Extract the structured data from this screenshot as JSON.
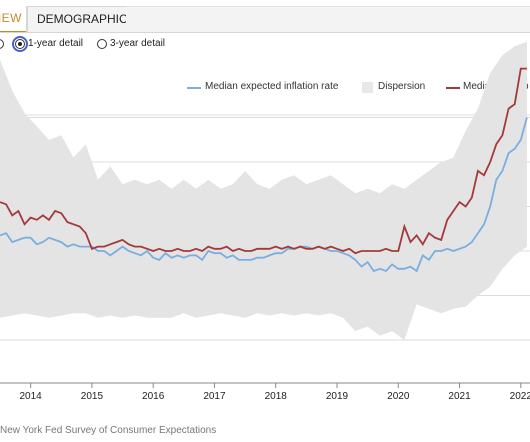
{
  "tabs": [
    {
      "label": "NEW",
      "active": true
    },
    {
      "label": "DEMOGRAPHICS",
      "active": false
    }
  ],
  "detail_options": {
    "selected": "1-year detail",
    "options": [
      "1-year detail",
      "3-year detail"
    ]
  },
  "legend": {
    "median": "Median expected inflation rate",
    "dispersion": "Dispersion",
    "point": "Median point p"
  },
  "source_text": "New York Fed Survey of Consumer Expectations",
  "colors": {
    "median": "#7aaee0",
    "point": "#a33a3a",
    "dispersion": "#e4e4e4",
    "tab_accent": "#c08a2e"
  },
  "chart_data": {
    "type": "line",
    "x_ticks": [
      "2014",
      "2015",
      "2016",
      "2017",
      "2018",
      "2019",
      "2020",
      "2021",
      "2022"
    ],
    "x_range": [
      2013.5,
      2022.15
    ],
    "y_range": [
      0,
      8
    ],
    "grid": true,
    "legend_position": "top-right",
    "series": [
      {
        "name": "Median expected inflation rate",
        "x": [
          2013.5,
          2013.6,
          2013.7,
          2013.8,
          2013.9,
          2014.0,
          2014.1,
          2014.2,
          2014.3,
          2014.4,
          2014.5,
          2014.6,
          2014.7,
          2014.8,
          2014.9,
          2015.0,
          2015.1,
          2015.2,
          2015.3,
          2015.4,
          2015.5,
          2015.6,
          2015.7,
          2015.8,
          2015.9,
          2016.0,
          2016.1,
          2016.2,
          2016.3,
          2016.4,
          2016.5,
          2016.6,
          2016.7,
          2016.8,
          2016.9,
          2017.0,
          2017.1,
          2017.2,
          2017.3,
          2017.4,
          2017.5,
          2017.6,
          2017.7,
          2017.8,
          2017.9,
          2018.0,
          2018.1,
          2018.2,
          2018.3,
          2018.4,
          2018.5,
          2018.6,
          2018.7,
          2018.8,
          2018.9,
          2019.0,
          2019.1,
          2019.2,
          2019.3,
          2019.4,
          2019.5,
          2019.6,
          2019.7,
          2019.8,
          2019.9,
          2020.0,
          2020.1,
          2020.2,
          2020.3,
          2020.4,
          2020.5,
          2020.6,
          2020.7,
          2020.8,
          2020.9,
          2021.0,
          2021.1,
          2021.2,
          2021.3,
          2021.4,
          2021.5,
          2021.6,
          2021.7,
          2021.8,
          2021.9,
          2022.0,
          2022.1
        ],
        "y": [
          3.35,
          3.4,
          3.2,
          3.25,
          3.3,
          3.3,
          3.15,
          3.2,
          3.3,
          3.25,
          3.2,
          3.1,
          3.15,
          3.1,
          3.1,
          3.1,
          3.0,
          3.0,
          2.9,
          3.0,
          3.1,
          3.0,
          2.95,
          2.9,
          3.0,
          2.85,
          2.8,
          2.95,
          2.85,
          2.9,
          2.85,
          2.9,
          2.9,
          2.8,
          3.0,
          2.95,
          2.95,
          2.85,
          2.9,
          2.8,
          2.8,
          2.8,
          2.85,
          2.85,
          2.9,
          2.95,
          2.95,
          3.05,
          3.05,
          3.1,
          3.1,
          3.05,
          3.1,
          3.05,
          3.0,
          3.0,
          2.95,
          2.9,
          2.8,
          2.65,
          2.75,
          2.55,
          2.6,
          2.55,
          2.7,
          2.6,
          2.6,
          2.65,
          2.55,
          2.9,
          2.8,
          3.0,
          3.0,
          3.05,
          3.0,
          3.05,
          3.1,
          3.2,
          3.4,
          3.6,
          4.0,
          4.6,
          4.8,
          5.2,
          5.3,
          5.5,
          6.0
        ]
      },
      {
        "name": "Median point p",
        "x": [
          2013.5,
          2013.6,
          2013.7,
          2013.8,
          2013.9,
          2014.0,
          2014.1,
          2014.2,
          2014.3,
          2014.4,
          2014.5,
          2014.6,
          2014.7,
          2014.8,
          2014.9,
          2015.0,
          2015.1,
          2015.2,
          2015.3,
          2015.4,
          2015.5,
          2015.6,
          2015.7,
          2015.8,
          2015.9,
          2016.0,
          2016.1,
          2016.2,
          2016.3,
          2016.4,
          2016.5,
          2016.6,
          2016.7,
          2016.8,
          2016.9,
          2017.0,
          2017.1,
          2017.2,
          2017.3,
          2017.4,
          2017.5,
          2017.6,
          2017.7,
          2017.8,
          2017.9,
          2018.0,
          2018.1,
          2018.2,
          2018.3,
          2018.4,
          2018.5,
          2018.6,
          2018.7,
          2018.8,
          2018.9,
          2019.0,
          2019.1,
          2019.2,
          2019.3,
          2019.4,
          2019.5,
          2019.6,
          2019.7,
          2019.8,
          2019.9,
          2020.0,
          2020.1,
          2020.2,
          2020.3,
          2020.4,
          2020.5,
          2020.6,
          2020.7,
          2020.8,
          2020.9,
          2021.0,
          2021.1,
          2021.2,
          2021.3,
          2021.4,
          2021.5,
          2021.6,
          2021.7,
          2021.8,
          2021.9,
          2022.0,
          2022.1
        ],
        "y": [
          4.1,
          4.05,
          3.8,
          3.9,
          3.6,
          3.75,
          3.7,
          3.8,
          3.7,
          3.9,
          3.85,
          3.65,
          3.6,
          3.55,
          3.4,
          3.05,
          3.1,
          3.1,
          3.15,
          3.2,
          3.25,
          3.15,
          3.1,
          3.1,
          3.05,
          3.0,
          3.05,
          3.0,
          3.0,
          3.05,
          3.0,
          3.0,
          3.05,
          3.0,
          3.1,
          3.05,
          3.05,
          3.1,
          3.0,
          3.05,
          3.0,
          3.0,
          3.05,
          3.05,
          3.05,
          3.1,
          3.05,
          3.1,
          3.05,
          3.1,
          3.05,
          3.05,
          3.1,
          3.05,
          3.1,
          3.05,
          3.0,
          3.05,
          2.95,
          3.0,
          3.0,
          3.0,
          3.0,
          3.05,
          3.0,
          3.0,
          3.55,
          3.2,
          3.35,
          3.15,
          3.4,
          3.3,
          3.25,
          3.7,
          3.9,
          4.1,
          4.0,
          4.2,
          4.8,
          4.7,
          5.0,
          5.4,
          5.6,
          6.2,
          6.3,
          7.1,
          7.1
        ]
      }
    ],
    "dispersion": {
      "name": "Dispersion",
      "x": [
        2013.5,
        2013.7,
        2013.9,
        2014.1,
        2014.3,
        2014.5,
        2014.7,
        2014.9,
        2015.1,
        2015.3,
        2015.5,
        2015.7,
        2015.9,
        2016.1,
        2016.3,
        2016.5,
        2016.7,
        2016.9,
        2017.1,
        2017.3,
        2017.5,
        2017.7,
        2017.9,
        2018.1,
        2018.3,
        2018.5,
        2018.7,
        2018.9,
        2019.1,
        2019.3,
        2019.5,
        2019.7,
        2019.9,
        2020.1,
        2020.3,
        2020.5,
        2020.7,
        2020.9,
        2021.1,
        2021.3,
        2021.5,
        2021.7,
        2021.9,
        2022.1
      ],
      "upper": [
        7.3,
        6.6,
        6.1,
        5.8,
        5.5,
        5.6,
        5.1,
        5.4,
        4.6,
        4.9,
        4.5,
        4.6,
        4.5,
        4.6,
        4.4,
        4.6,
        4.4,
        4.6,
        4.4,
        4.5,
        4.8,
        4.5,
        4.4,
        4.6,
        4.7,
        4.5,
        4.6,
        4.7,
        4.5,
        4.3,
        4.4,
        4.3,
        4.5,
        4.4,
        4.6,
        4.8,
        5.0,
        5.1,
        5.7,
        6.2,
        7.0,
        7.4,
        7.6,
        7.7
      ],
      "lower": [
        1.5,
        1.55,
        1.6,
        1.55,
        1.5,
        1.55,
        1.6,
        1.6,
        1.5,
        1.55,
        1.5,
        1.55,
        1.5,
        1.5,
        1.5,
        1.6,
        1.5,
        1.55,
        1.6,
        1.55,
        1.5,
        1.6,
        1.55,
        1.6,
        1.55,
        1.6,
        1.55,
        1.6,
        1.5,
        1.2,
        1.3,
        1.1,
        1.2,
        1.0,
        1.8,
        1.7,
        1.6,
        1.7,
        1.75,
        2.0,
        2.2,
        2.6,
        2.9,
        3.1
      ]
    }
  }
}
